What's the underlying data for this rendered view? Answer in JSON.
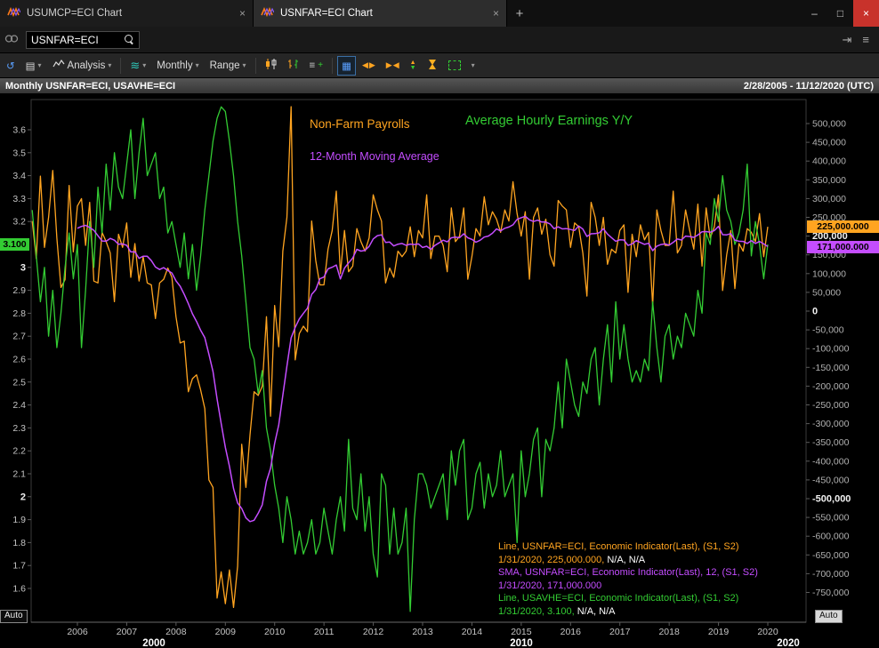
{
  "window": {
    "tabs": [
      {
        "label": "USUMCP=ECI Chart",
        "active": false
      },
      {
        "label": "USNFAR=ECI Chart",
        "active": true
      }
    ]
  },
  "icons": {
    "plus": "+",
    "minimize": "–",
    "maximize": "□",
    "close": "×",
    "tab_close": "×",
    "caret": "▾",
    "menu": "≡",
    "dock": "⇥",
    "refresh": "↺",
    "layers": "▤",
    "waves": "≋",
    "grid": "▦",
    "left": "◀",
    "right": "▶",
    "up": "▲",
    "down": "▼",
    "more": "▾",
    "lines": "≡"
  },
  "quote_bar": {
    "symbol": "USNFAR=ECI"
  },
  "toolbar": {
    "analysis_label": "Analysis",
    "interval_label": "Monthly",
    "range_label": "Range"
  },
  "chart_header": {
    "title": "Monthly USNFAR=ECI, USAVHE=ECI",
    "date_range": "2/28/2005 - 11/12/2020 (UTC)"
  },
  "legend": {
    "nfp": "Non-Farm Payrolls",
    "sma": "12-Month Moving Average",
    "ahe": "Average Hourly Earnings Y/Y"
  },
  "badges": {
    "nfp": "225,000.000",
    "sma": "171,000.000",
    "ahe": "3.100"
  },
  "auto_label": "Auto",
  "info_lines": [
    {
      "main": "Line, USNFAR=ECI, Economic Indicator(Last), (S1, S2)",
      "extra": ""
    },
    {
      "main": "1/31/2020, 225,000.000, ",
      "extra": "N/A, N/A"
    },
    {
      "main": "SMA, USNFAR=ECI, Economic Indicator(Last), 12, (S1, S2)",
      "extra": ""
    },
    {
      "main": "1/31/2020, 171,000.000",
      "extra": ""
    },
    {
      "main": "Line, USAVHE=ECI, Economic Indicator(Last), (S1, S2)",
      "extra": ""
    },
    {
      "main": "1/31/2020, 3.100, ",
      "extra": "N/A, N/A"
    }
  ],
  "chart_data": {
    "type": "line",
    "title": "Monthly USNFAR=ECI, USAVHE=ECI",
    "grid": false,
    "legend_position": "in-chart",
    "x_axis": {
      "start": "2005-02",
      "end": "2020-01",
      "interval": "monthly",
      "year_labels": [
        "2006",
        "2007",
        "2008",
        "2009",
        "2010",
        "2011",
        "2012",
        "2013",
        "2014",
        "2015",
        "2016",
        "2017",
        "2018",
        "2019",
        "2020"
      ],
      "decade_labels": [
        "2000",
        "2010",
        "2020"
      ]
    },
    "left_axis": {
      "series": "Average Hourly Earnings Y/Y (%)",
      "range": [
        1.45,
        3.73
      ],
      "ticks": [
        3.6,
        3.5,
        3.4,
        3.3,
        3.2,
        3.1,
        3.0,
        2.9,
        2.8,
        2.7,
        2.6,
        2.5,
        2.4,
        2.3,
        2.2,
        2.1,
        2.0,
        1.9,
        1.8,
        1.7,
        1.6
      ],
      "bold": [
        3.0,
        2.0
      ],
      "badge_value": 3.1
    },
    "right_axis": {
      "series": "Non-Farm Payrolls (change, persons)",
      "range": [
        -800000,
        565000
      ],
      "ticks": [
        500000,
        450000,
        400000,
        350000,
        300000,
        250000,
        200000,
        150000,
        100000,
        50000,
        0,
        -50000,
        -100000,
        -150000,
        -200000,
        -250000,
        -300000,
        -350000,
        -400000,
        -450000,
        -500000,
        -550000,
        -600000,
        -650000,
        -700000,
        -750000
      ],
      "bold": [
        200000,
        0,
        -500000
      ]
    },
    "last_values": {
      "date": "1/31/2020",
      "nfp": 225000,
      "sma": 171000,
      "ahe": 3.1
    },
    "series": [
      {
        "name": "Non-Farm Payrolls",
        "ric": "USNFAR=ECI",
        "axis": "right",
        "color": "#FFA420",
        "unit": "thousands",
        "values": [
          240,
          140,
          360,
          170,
          250,
          375,
          195,
          63,
          84,
          335,
          158,
          280,
          300,
          175,
          290,
          80,
          75,
          210,
          185,
          155,
          25,
          205,
          170,
          235,
          90,
          180,
          80,
          145,
          75,
          70,
          -20,
          75,
          85,
          115,
          90,
          -15,
          -85,
          -80,
          -215,
          -180,
          -170,
          -210,
          -260,
          -450,
          -470,
          -765,
          -695,
          -780,
          -690,
          -790,
          -680,
          -355,
          -470,
          -330,
          -215,
          -225,
          -200,
          -15,
          -280,
          15,
          -95,
          160,
          250,
          545,
          -130,
          -60,
          -40,
          -55,
          240,
          135,
          70,
          70,
          165,
          215,
          320,
          100,
          215,
          105,
          120,
          220,
          185,
          160,
          195,
          310,
          270,
          240,
          75,
          115,
          90,
          160,
          145,
          160,
          225,
          145,
          215,
          195,
          310,
          140,
          200,
          200,
          175,
          105,
          275,
          185,
          200,
          275,
          85,
          145,
          220,
          200,
          305,
          230,
          265,
          245,
          210,
          270,
          240,
          345,
          260,
          200,
          265,
          85,
          250,
          275,
          205,
          245,
          150,
          120,
          295,
          280,
          270,
          170,
          235,
          225,
          155,
          40,
          290,
          250,
          175,
          250,
          125,
          165,
          155,
          215,
          230,
          50,
          205,
          145,
          230,
          190,
          210,
          15,
          270,
          215,
          175,
          175,
          320,
          155,
          175,
          270,
          215,
          165,
          285,
          120,
          275,
          195,
          225,
          310,
          55,
          150,
          215,
          60,
          180,
          160,
          220,
          210,
          185,
          260,
          145,
          225
        ]
      },
      {
        "name": "12-Month Moving Average",
        "ric": "SMA(USNFAR=ECI,12)",
        "axis": "right",
        "color": "#C44DFF",
        "derived": "12-month trailing mean of Non-Farm Payrolls"
      },
      {
        "name": "Average Hourly Earnings Y/Y",
        "ric": "USAVHE=ECI",
        "axis": "left",
        "color": "#33CC33",
        "unit": "percent",
        "values": [
          3.25,
          3.05,
          2.85,
          3.0,
          2.7,
          2.9,
          2.65,
          2.8,
          3.0,
          3.15,
          2.95,
          3.1,
          2.65,
          2.9,
          3.2,
          3.0,
          3.35,
          3.15,
          3.45,
          3.25,
          3.5,
          3.35,
          3.3,
          3.45,
          3.6,
          3.3,
          3.5,
          3.65,
          3.4,
          3.45,
          3.5,
          3.3,
          3.35,
          3.15,
          3.2,
          3.1,
          3.0,
          3.15,
          2.95,
          3.1,
          2.9,
          3.05,
          3.25,
          3.4,
          3.55,
          3.65,
          3.7,
          3.68,
          3.55,
          3.4,
          3.2,
          3.05,
          2.85,
          2.65,
          2.6,
          2.45,
          2.55,
          2.3,
          2.2,
          2.05,
          1.95,
          1.8,
          2.0,
          1.9,
          1.75,
          1.85,
          1.75,
          1.8,
          1.9,
          1.75,
          1.8,
          1.95,
          1.85,
          1.75,
          1.9,
          2.0,
          1.85,
          2.25,
          1.95,
          1.9,
          2.1,
          1.85,
          2.0,
          1.75,
          1.65,
          2.1,
          2.05,
          1.75,
          1.95,
          1.75,
          1.8,
          1.95,
          1.5,
          1.9,
          2.1,
          2.1,
          2.05,
          1.95,
          2.0,
          2.05,
          2.1,
          1.9,
          2.2,
          2.05,
          2.2,
          2.25,
          1.9,
          1.95,
          2.1,
          2.15,
          1.95,
          2.1,
          2.0,
          2.05,
          2.2,
          2.0,
          2.05,
          2.1,
          1.8,
          2.2,
          2.0,
          2.1,
          2.25,
          2.3,
          2.0,
          2.25,
          2.2,
          2.3,
          2.5,
          2.3,
          2.6,
          2.5,
          2.4,
          2.35,
          2.5,
          2.45,
          2.6,
          2.65,
          2.4,
          2.6,
          2.75,
          2.5,
          2.85,
          2.6,
          2.75,
          2.6,
          2.5,
          2.55,
          2.5,
          2.6,
          2.55,
          2.85,
          2.65,
          2.5,
          2.7,
          2.75,
          2.6,
          2.7,
          2.65,
          2.8,
          2.75,
          2.7,
          2.9,
          2.8,
          3.15,
          3.1,
          3.3,
          3.2,
          3.4,
          3.25,
          3.2,
          3.1,
          3.15,
          3.25,
          3.45,
          3.05,
          3.2,
          3.1,
          2.95,
          3.1
        ]
      }
    ]
  }
}
